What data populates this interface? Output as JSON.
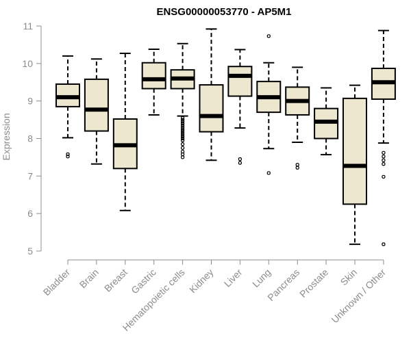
{
  "chart_data": {
    "type": "boxplot",
    "title": "ENSG00000053770 - AP5M1",
    "ylabel": "Expression",
    "ylim": [
      5,
      11
    ],
    "yticks": [
      5,
      6,
      7,
      8,
      9,
      10,
      11
    ],
    "categories": [
      "Bladder",
      "Brain",
      "Breast",
      "Gastric",
      "Hematopoietic cells",
      "Kidney",
      "Liver",
      "Lung",
      "Pancreas",
      "Prostate",
      "Skin",
      "Unknown / Other"
    ],
    "boxes": [
      {
        "name": "Bladder",
        "whisker_low": 8.02,
        "q1": 8.85,
        "median": 9.1,
        "q3": 9.45,
        "whisker_high": 10.2,
        "outliers": [
          7.58,
          7.52
        ]
      },
      {
        "name": "Brain",
        "whisker_low": 7.32,
        "q1": 8.2,
        "median": 8.77,
        "q3": 9.58,
        "whisker_high": 10.12,
        "outliers": []
      },
      {
        "name": "Breast",
        "whisker_low": 6.08,
        "q1": 7.2,
        "median": 7.82,
        "q3": 8.52,
        "whisker_high": 10.27,
        "outliers": []
      },
      {
        "name": "Gastric",
        "whisker_low": 8.63,
        "q1": 9.33,
        "median": 9.58,
        "q3": 10.02,
        "whisker_high": 10.38,
        "outliers": []
      },
      {
        "name": "Hematopoietic cells",
        "whisker_low": 8.6,
        "q1": 9.33,
        "median": 9.6,
        "q3": 9.83,
        "whisker_high": 10.53,
        "outliers": [
          8.55,
          8.5,
          8.45,
          8.4,
          8.35,
          8.3,
          8.25,
          8.2,
          8.15,
          8.1,
          8.05,
          8.0,
          7.95,
          7.85,
          7.75,
          7.65,
          7.58,
          7.5
        ]
      },
      {
        "name": "Kidney",
        "whisker_low": 7.42,
        "q1": 8.18,
        "median": 8.6,
        "q3": 9.43,
        "whisker_high": 10.92,
        "outliers": []
      },
      {
        "name": "Liver",
        "whisker_low": 8.28,
        "q1": 9.13,
        "median": 9.67,
        "q3": 9.92,
        "whisker_high": 10.37,
        "outliers": [
          7.45,
          7.35
        ]
      },
      {
        "name": "Lung",
        "whisker_low": 7.73,
        "q1": 8.7,
        "median": 9.1,
        "q3": 9.52,
        "whisker_high": 10.02,
        "outliers": [
          10.73,
          7.08
        ]
      },
      {
        "name": "Pancreas",
        "whisker_low": 7.9,
        "q1": 8.63,
        "median": 9.0,
        "q3": 9.37,
        "whisker_high": 9.9,
        "outliers": [
          7.3,
          7.22
        ]
      },
      {
        "name": "Prostate",
        "whisker_low": 7.57,
        "q1": 8.0,
        "median": 8.45,
        "q3": 8.8,
        "whisker_high": 9.35,
        "outliers": []
      },
      {
        "name": "Skin",
        "whisker_low": 5.18,
        "q1": 6.25,
        "median": 7.27,
        "q3": 9.07,
        "whisker_high": 9.42,
        "outliers": []
      },
      {
        "name": "Unknown / Other",
        "whisker_low": 7.88,
        "q1": 9.05,
        "median": 9.5,
        "q3": 9.87,
        "whisker_high": 10.88,
        "outliers": [
          7.62,
          7.52,
          7.42,
          7.32,
          6.98,
          5.18
        ]
      }
    ],
    "colors": {
      "box_fill": "#ede7cf",
      "box_stroke": "#000000",
      "median": "#000000",
      "axis": "#8c8c8c",
      "tick_label": "#8c8c8c",
      "title": "#000000"
    },
    "grid": false,
    "legend": "none"
  }
}
